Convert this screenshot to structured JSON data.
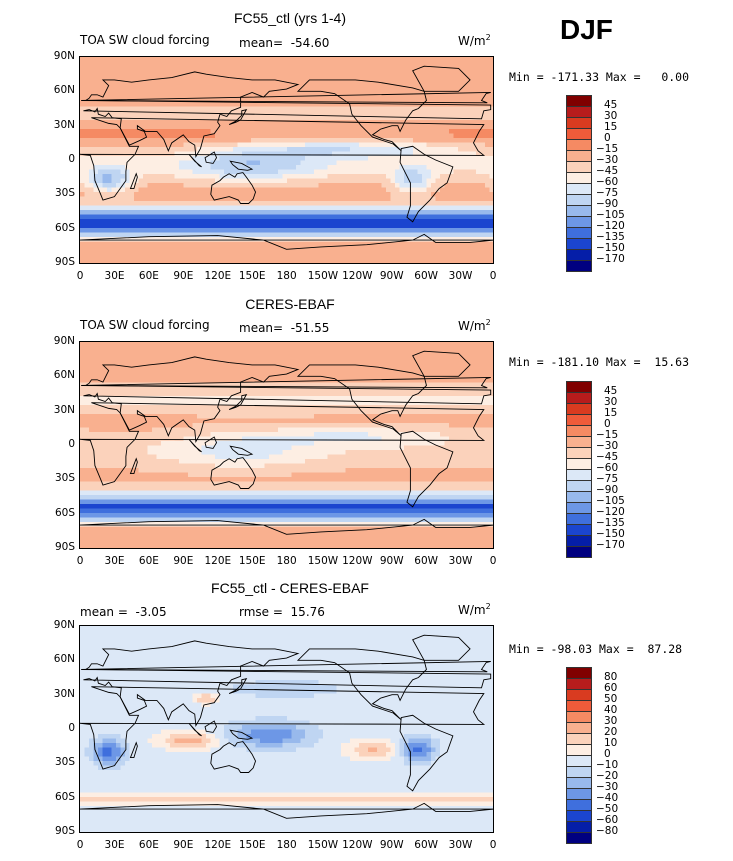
{
  "season": "DJF",
  "panels": [
    {
      "title": "FC55_ctl (yrs 1-4)",
      "left_label": "TOA SW cloud forcing",
      "center_label": "mean=  -54.60",
      "units": "W/m",
      "units_sup": "2",
      "min_max": "Min = -171.33 Max =   0.00",
      "colorbar_labels": [
        "45",
        "30",
        "15",
        "0",
        "-15",
        "-30",
        "-45",
        "-60",
        "-75",
        "-90",
        "-105",
        "-120",
        "-135",
        "-150",
        "-170"
      ],
      "field": "model"
    },
    {
      "title": "CERES-EBAF",
      "left_label": "TOA SW cloud forcing",
      "center_label": "mean=  -51.55",
      "units": "W/m",
      "units_sup": "2",
      "min_max": "Min = -181.10 Max =  15.63",
      "colorbar_labels": [
        "45",
        "30",
        "15",
        "0",
        "-15",
        "-30",
        "-45",
        "-60",
        "-75",
        "-90",
        "-105",
        "-120",
        "-135",
        "-150",
        "-170"
      ],
      "field": "obs"
    },
    {
      "title": "FC55_ctl - CERES-EBAF",
      "left_label": "mean =  -3.05",
      "center_label": "rmse =  15.76",
      "units": "W/m",
      "units_sup": "2",
      "min_max": "Min = -98.03 Max =  87.28",
      "colorbar_labels": [
        "80",
        "60",
        "50",
        "40",
        "30",
        "20",
        "10",
        "0",
        "-10",
        "-20",
        "-30",
        "-40",
        "-50",
        "-60",
        "-80"
      ],
      "field": "diff"
    }
  ],
  "lat_ticks": [
    "90N",
    "60N",
    "30N",
    "0",
    "30S",
    "60S",
    "90S"
  ],
  "lon_ticks": [
    "0",
    "30E",
    "60E",
    "90E",
    "120E",
    "150E",
    "180",
    "150W",
    "120W",
    "90W",
    "60W",
    "30W",
    "0"
  ],
  "colors": {
    "scale": [
      "#800000",
      "#b71c1c",
      "#d93b20",
      "#ef5b3a",
      "#f58a63",
      "#f9b08f",
      "#fbd2bb",
      "#fdeee3",
      "#dce8f7",
      "#bfd5f2",
      "#98b9ec",
      "#6d97e6",
      "#3f6fdd",
      "#1b45cf",
      "#051ea8",
      "#000080"
    ]
  }
}
